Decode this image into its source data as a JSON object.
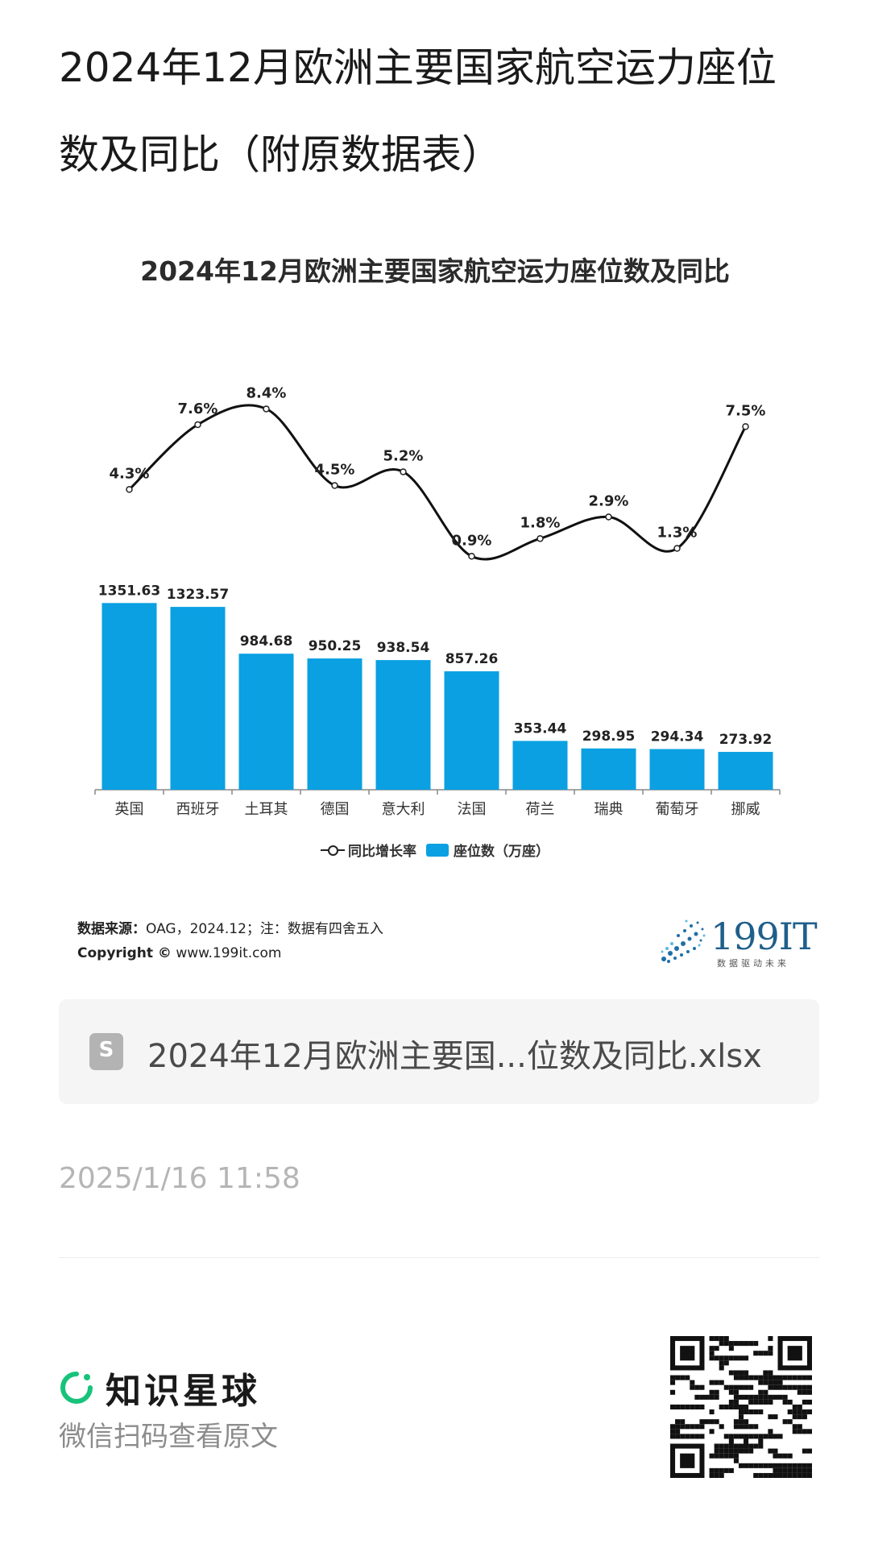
{
  "page": {
    "title": "2024年12月欧洲主要国家航空运力座位数及同比（附原数据表）"
  },
  "chart_data": {
    "type": "bar",
    "title": "2024年12月欧洲主要国家航空运力座位数及同比",
    "categories": [
      "英国",
      "西班牙",
      "土耳其",
      "德国",
      "意大利",
      "法国",
      "荷兰",
      "瑞典",
      "葡萄牙",
      "挪威"
    ],
    "series": [
      {
        "name": "座位数（万座）",
        "type": "bar",
        "color": "#0aa0e2",
        "values": [
          1351.63,
          1323.57,
          984.68,
          950.25,
          938.54,
          857.26,
          353.44,
          298.95,
          294.34,
          273.92
        ],
        "labels": [
          "1351.63",
          "1323.57",
          "984.68",
          "950.25",
          "938.54",
          "857.26",
          "353.44",
          "298.95",
          "294.34",
          "273.92"
        ]
      },
      {
        "name": "同比增长率",
        "type": "line",
        "smooth": true,
        "color": "#111111",
        "values": [
          4.3,
          7.6,
          8.4,
          4.5,
          5.2,
          0.9,
          1.8,
          2.9,
          1.3,
          7.5
        ],
        "labels": [
          "4.3%",
          "7.6%",
          "8.4%",
          "4.5%",
          "5.2%",
          "0.9%",
          "1.8%",
          "2.9%",
          "1.3%",
          "7.5%"
        ]
      }
    ],
    "legend": [
      "同比增长率",
      "座位数（万座）"
    ],
    "legend_position": "bottom",
    "grid": false
  },
  "source": {
    "label": "数据来源：",
    "text": "OAG，2024.12；注：数据有四舍五入",
    "copyright_label": "Copyright ©",
    "copyright_url": "www.199it.com"
  },
  "logo": {
    "name": "199IT",
    "tagline": "数据驱动未来"
  },
  "file": {
    "icon": "spreadsheet-icon",
    "icon_letter": "S",
    "name": "2024年12月欧洲主要国...位数及同比.xlsx"
  },
  "timestamp": "2025/1/16 11:58",
  "footer": {
    "brand": "知识星球",
    "hint": "微信扫码查看原文"
  }
}
